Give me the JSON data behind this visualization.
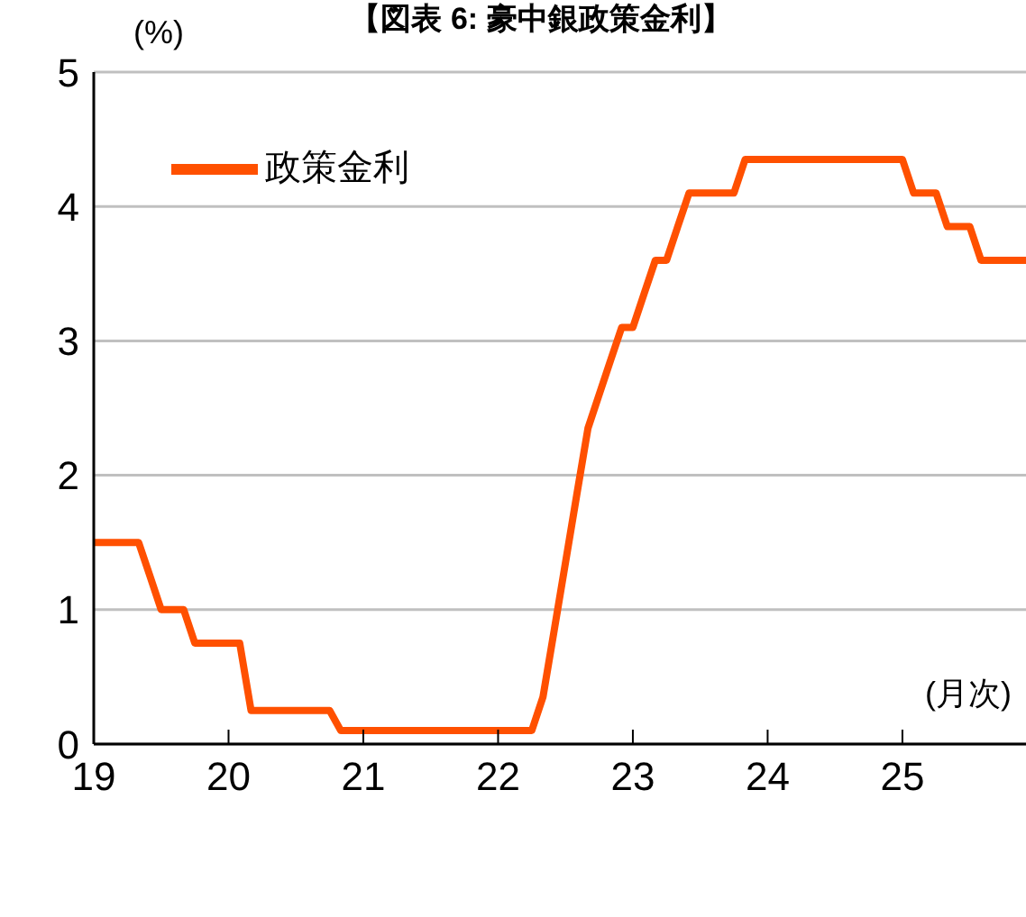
{
  "chart_data": {
    "type": "line",
    "title": "【図表 6: 豪中銀政策金利】",
    "xlabel": "(月次)",
    "ylabel": "(%)",
    "x": [
      19,
      19.083,
      19.167,
      19.25,
      19.333,
      19.417,
      19.5,
      19.583,
      19.667,
      19.75,
      19.833,
      19.917,
      20,
      20.083,
      20.167,
      20.25,
      20.333,
      20.417,
      20.5,
      20.583,
      20.667,
      20.75,
      20.833,
      20.917,
      21,
      21.083,
      21.167,
      21.25,
      21.333,
      21.417,
      21.5,
      21.583,
      21.667,
      21.75,
      21.833,
      21.917,
      22,
      22.083,
      22.167,
      22.25,
      22.333,
      22.417,
      22.5,
      22.583,
      22.667,
      22.75,
      22.833,
      22.917,
      23,
      23.083,
      23.167,
      23.25,
      23.333,
      23.417,
      23.5,
      23.583,
      23.667,
      23.75,
      23.833,
      23.917,
      24,
      24.083,
      24.167,
      24.25,
      24.333,
      24.417,
      24.5,
      24.583,
      24.667,
      24.75,
      24.833,
      24.917,
      25,
      25.083,
      25.167,
      25.25,
      25.333,
      25.417,
      25.5,
      25.583,
      25.667,
      25.75,
      25.833,
      25.917
    ],
    "series": [
      {
        "name": "政策金利",
        "color": "#ff5000",
        "values": [
          1.5,
          1.5,
          1.5,
          1.5,
          1.5,
          1.25,
          1,
          1,
          1,
          0.75,
          0.75,
          0.75,
          0.75,
          0.75,
          0.25,
          0.25,
          0.25,
          0.25,
          0.25,
          0.25,
          0.25,
          0.25,
          0.1,
          0.1,
          0.1,
          0.1,
          0.1,
          0.1,
          0.1,
          0.1,
          0.1,
          0.1,
          0.1,
          0.1,
          0.1,
          0.1,
          0.1,
          0.1,
          0.1,
          0.1,
          0.35,
          0.85,
          1.35,
          1.85,
          2.35,
          2.6,
          2.85,
          3.1,
          3.1,
          3.35,
          3.6,
          3.6,
          3.85,
          4.1,
          4.1,
          4.1,
          4.1,
          4.1,
          4.35,
          4.35,
          4.35,
          4.35,
          4.35,
          4.35,
          4.35,
          4.35,
          4.35,
          4.35,
          4.35,
          4.35,
          4.35,
          4.35,
          4.35,
          4.1,
          4.1,
          4.1,
          3.85,
          3.85,
          3.85,
          3.6,
          3.6,
          3.6,
          3.6,
          3.6
        ]
      }
    ],
    "xlim": [
      19,
      25.917
    ],
    "xticks": [
      19,
      20,
      21,
      22,
      23,
      24,
      25
    ],
    "ylim": [
      0,
      5
    ],
    "yticks": [
      0,
      1,
      2,
      3,
      4,
      5
    ],
    "grid": "y",
    "legend": "top left",
    "line_style": "solid"
  }
}
